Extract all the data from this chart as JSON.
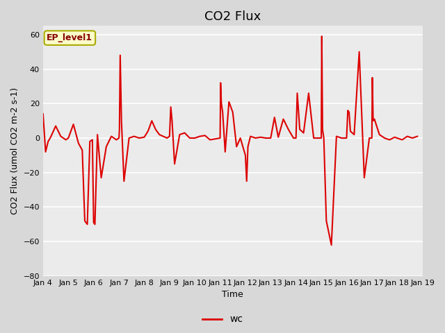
{
  "title": "CO2 Flux",
  "xlabel": "Time",
  "ylabel": "CO2 Flux (umol CO2 m-2 s-1)",
  "ylim": [
    -80,
    65
  ],
  "yticks": [
    -80,
    -60,
    -40,
    -20,
    0,
    20,
    40,
    60
  ],
  "line_color": "#DD0000",
  "line_width": 1.5,
  "fig_bg_color": "#D8D8D8",
  "plot_bg_color": "#EBEBEB",
  "legend_label": "wc",
  "annotation_text": "EP_level1",
  "annotation_bg": "#FFFFCC",
  "annotation_border": "#AAAA00",
  "title_fontsize": 13,
  "label_fontsize": 9,
  "tick_fontsize": 8,
  "x_start_day": 4,
  "x_end_day": 19,
  "x_tick_days": [
    4,
    5,
    6,
    7,
    8,
    9,
    10,
    11,
    12,
    13,
    14,
    15,
    16,
    17,
    18,
    19
  ],
  "x_tick_labels": [
    "Jan 4",
    "Jan 5",
    "Jan 6",
    "Jan 7",
    "Jan 8",
    "Jan 9",
    "Jan 10",
    "Jan 11",
    "Jan 12",
    "Jan 13",
    "Jan 14",
    "Jan 15",
    "Jan 16",
    "Jan 17",
    "Jan 18",
    "Jan 19"
  ],
  "data_x": [
    4.0,
    4.1,
    4.2,
    4.3,
    4.5,
    4.7,
    4.9,
    5.0,
    5.2,
    5.4,
    5.55,
    5.65,
    5.75,
    5.85,
    5.95,
    6.0,
    6.05,
    6.15,
    6.3,
    6.5,
    6.7,
    6.9,
    7.0,
    7.02,
    7.05,
    7.1,
    7.2,
    7.4,
    7.6,
    7.8,
    8.0,
    8.15,
    8.3,
    8.45,
    8.6,
    8.75,
    8.9,
    9.0,
    9.05,
    9.1,
    9.2,
    9.4,
    9.6,
    9.8,
    10.0,
    10.2,
    10.4,
    10.6,
    10.8,
    11.0,
    11.02,
    11.05,
    11.1,
    11.2,
    11.35,
    11.5,
    11.65,
    11.8,
    12.0,
    12.05,
    12.1,
    12.2,
    12.4,
    12.6,
    12.8,
    13.0,
    13.15,
    13.3,
    13.5,
    13.7,
    13.9,
    14.0,
    14.05,
    14.15,
    14.3,
    14.5,
    14.7,
    14.9,
    15.0,
    15.02,
    15.05,
    15.1,
    15.2,
    15.4,
    15.6,
    15.8,
    16.0,
    16.05,
    16.1,
    16.15,
    16.3,
    16.5,
    16.7,
    16.9,
    17.0,
    17.02,
    17.05,
    17.1,
    17.3,
    17.5,
    17.7,
    17.9,
    18.0,
    18.2,
    18.4,
    18.6,
    18.8
  ],
  "data_y": [
    14.0,
    -8.0,
    -2.0,
    0.5,
    7.0,
    1.0,
    -1.0,
    0.0,
    8.0,
    -3.0,
    -7.0,
    -48.0,
    -50.0,
    -2.0,
    -1.0,
    -49.0,
    -50.0,
    2.0,
    -23.0,
    -5.0,
    1.0,
    -1.0,
    0.0,
    5.0,
    48.0,
    10.0,
    -25.0,
    0.0,
    1.0,
    0.0,
    0.5,
    4.0,
    10.0,
    5.0,
    2.0,
    1.0,
    0.0,
    1.0,
    18.0,
    10.0,
    -15.0,
    2.0,
    3.0,
    0.0,
    0.0,
    1.0,
    1.5,
    -1.0,
    -0.5,
    0.0,
    32.0,
    20.0,
    15.0,
    -8.0,
    21.0,
    15.0,
    -5.0,
    0.0,
    -10.0,
    -25.0,
    -5.0,
    1.0,
    0.0,
    0.5,
    0.0,
    0.0,
    12.0,
    0.5,
    11.0,
    5.0,
    0.0,
    0.0,
    26.0,
    5.0,
    3.0,
    26.0,
    0.0,
    0.0,
    0.0,
    59.0,
    5.0,
    0.0,
    -48.0,
    -62.0,
    1.0,
    0.0,
    0.0,
    16.0,
    15.0,
    4.0,
    2.0,
    50.0,
    -23.0,
    0.0,
    0.0,
    35.0,
    10.0,
    11.0,
    2.0,
    0.0,
    -1.0,
    0.5,
    0.0,
    -1.0,
    1.0,
    0.0,
    1.0
  ]
}
